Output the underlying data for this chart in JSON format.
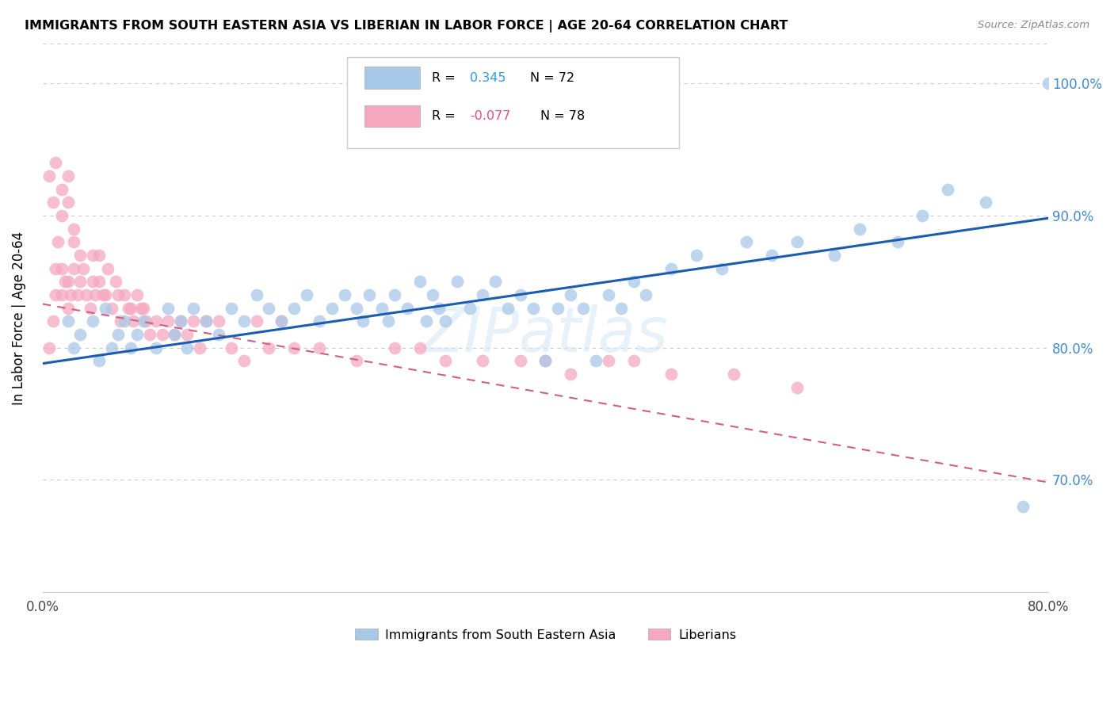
{
  "title": "IMMIGRANTS FROM SOUTH EASTERN ASIA VS LIBERIAN IN LABOR FORCE | AGE 20-64 CORRELATION CHART",
  "source": "Source: ZipAtlas.com",
  "ylabel": "In Labor Force | Age 20-64",
  "xlim": [
    0.0,
    0.8
  ],
  "ylim": [
    0.615,
    1.03
  ],
  "x_ticks": [
    0.0,
    0.1,
    0.2,
    0.3,
    0.4,
    0.5,
    0.6,
    0.7,
    0.8
  ],
  "x_tick_labels": [
    "0.0%",
    "",
    "",
    "",
    "",
    "",
    "",
    "",
    "80.0%"
  ],
  "y_ticks": [
    0.7,
    0.8,
    0.9,
    1.0
  ],
  "y_tick_labels": [
    "70.0%",
    "80.0%",
    "90.0%",
    "100.0%"
  ],
  "blue_color": "#a8c8e8",
  "pink_color": "#f5a8c0",
  "blue_line_color": "#1a5cb0",
  "pink_line_color": "#d06080",
  "watermark": "ZIPatlas",
  "blue_R": 0.345,
  "blue_N": 72,
  "pink_R": -0.077,
  "pink_N": 78,
  "blue_scatter_x": [
    0.02,
    0.025,
    0.03,
    0.04,
    0.045,
    0.05,
    0.055,
    0.06,
    0.065,
    0.07,
    0.075,
    0.08,
    0.09,
    0.1,
    0.105,
    0.11,
    0.115,
    0.12,
    0.13,
    0.14,
    0.15,
    0.16,
    0.17,
    0.18,
    0.19,
    0.2,
    0.21,
    0.22,
    0.23,
    0.24,
    0.25,
    0.255,
    0.26,
    0.27,
    0.275,
    0.28,
    0.29,
    0.3,
    0.305,
    0.31,
    0.315,
    0.32,
    0.33,
    0.34,
    0.35,
    0.36,
    0.37,
    0.38,
    0.39,
    0.4,
    0.41,
    0.42,
    0.43,
    0.44,
    0.45,
    0.46,
    0.47,
    0.48,
    0.5,
    0.52,
    0.54,
    0.56,
    0.58,
    0.6,
    0.63,
    0.65,
    0.68,
    0.7,
    0.72,
    0.75,
    0.78,
    0.8
  ],
  "blue_scatter_y": [
    0.82,
    0.8,
    0.81,
    0.82,
    0.79,
    0.83,
    0.8,
    0.81,
    0.82,
    0.8,
    0.81,
    0.82,
    0.8,
    0.83,
    0.81,
    0.82,
    0.8,
    0.83,
    0.82,
    0.81,
    0.83,
    0.82,
    0.84,
    0.83,
    0.82,
    0.83,
    0.84,
    0.82,
    0.83,
    0.84,
    0.83,
    0.82,
    0.84,
    0.83,
    0.82,
    0.84,
    0.83,
    0.85,
    0.82,
    0.84,
    0.83,
    0.82,
    0.85,
    0.83,
    0.84,
    0.85,
    0.83,
    0.84,
    0.83,
    0.79,
    0.83,
    0.84,
    0.83,
    0.79,
    0.84,
    0.83,
    0.85,
    0.84,
    0.86,
    0.87,
    0.86,
    0.88,
    0.87,
    0.88,
    0.87,
    0.89,
    0.88,
    0.9,
    0.92,
    0.91,
    0.68,
    1.0
  ],
  "pink_scatter_x": [
    0.005,
    0.008,
    0.01,
    0.01,
    0.012,
    0.015,
    0.015,
    0.018,
    0.02,
    0.02,
    0.022,
    0.025,
    0.025,
    0.028,
    0.03,
    0.03,
    0.032,
    0.035,
    0.038,
    0.04,
    0.04,
    0.042,
    0.045,
    0.045,
    0.048,
    0.05,
    0.052,
    0.055,
    0.058,
    0.06,
    0.062,
    0.065,
    0.068,
    0.07,
    0.072,
    0.075,
    0.078,
    0.08,
    0.082,
    0.085,
    0.09,
    0.095,
    0.1,
    0.105,
    0.11,
    0.115,
    0.12,
    0.125,
    0.13,
    0.14,
    0.15,
    0.16,
    0.17,
    0.18,
    0.19,
    0.2,
    0.22,
    0.25,
    0.28,
    0.3,
    0.32,
    0.35,
    0.38,
    0.4,
    0.42,
    0.45,
    0.47,
    0.5,
    0.55,
    0.6,
    0.005,
    0.008,
    0.01,
    0.015,
    0.015,
    0.02,
    0.02,
    0.025
  ],
  "pink_scatter_y": [
    0.8,
    0.82,
    0.84,
    0.86,
    0.88,
    0.84,
    0.86,
    0.85,
    0.83,
    0.85,
    0.84,
    0.86,
    0.88,
    0.84,
    0.85,
    0.87,
    0.86,
    0.84,
    0.83,
    0.85,
    0.87,
    0.84,
    0.85,
    0.87,
    0.84,
    0.84,
    0.86,
    0.83,
    0.85,
    0.84,
    0.82,
    0.84,
    0.83,
    0.83,
    0.82,
    0.84,
    0.83,
    0.83,
    0.82,
    0.81,
    0.82,
    0.81,
    0.82,
    0.81,
    0.82,
    0.81,
    0.82,
    0.8,
    0.82,
    0.82,
    0.8,
    0.79,
    0.82,
    0.8,
    0.82,
    0.8,
    0.8,
    0.79,
    0.8,
    0.8,
    0.79,
    0.79,
    0.79,
    0.79,
    0.78,
    0.79,
    0.79,
    0.78,
    0.78,
    0.77,
    0.93,
    0.91,
    0.94,
    0.92,
    0.9,
    0.93,
    0.91,
    0.89
  ]
}
